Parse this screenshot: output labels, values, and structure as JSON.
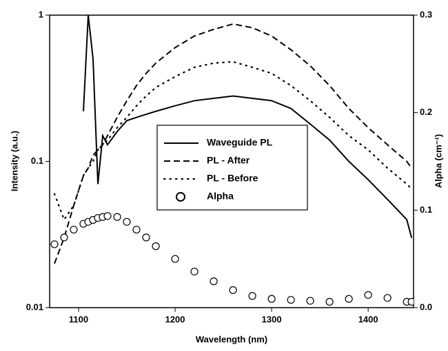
{
  "chart_data": {
    "type": "line",
    "xlabel": "Wavelength (nm)",
    "ylabel": "Intensity (a.u.)",
    "y2label": "Alpha (cm⁻¹)",
    "xlim": [
      1070,
      1447
    ],
    "xticks": [
      1100,
      1200,
      1300,
      1400
    ],
    "ylim": [
      0.01,
      1
    ],
    "yticks": [
      0.01,
      0.1,
      1
    ],
    "ylog": true,
    "y2lim": [
      0,
      0.3
    ],
    "y2ticks": [
      {
        "value": 0,
        "label": "0.0"
      },
      0.1,
      0.2,
      0.3
    ],
    "legend": "center",
    "x": [
      1075,
      1085,
      1095,
      1105,
      1110,
      1115,
      1120,
      1125,
      1130,
      1140,
      1150,
      1160,
      1170,
      1180,
      1200,
      1220,
      1240,
      1260,
      1280,
      1300,
      1320,
      1340,
      1360,
      1380,
      1400,
      1420,
      1440,
      1445
    ],
    "series": [
      {
        "name": "Waveguide PL",
        "color": "#000000",
        "style": "solid",
        "values": [
          null,
          null,
          null,
          0.22,
          1.0,
          0.5,
          0.07,
          0.15,
          0.13,
          0.16,
          0.19,
          0.2,
          0.21,
          0.22,
          0.24,
          0.26,
          0.27,
          0.28,
          0.27,
          0.26,
          0.23,
          0.18,
          0.14,
          0.1,
          0.075,
          0.055,
          0.04,
          0.03
        ]
      },
      {
        "name": "PL - After",
        "color": "#000000",
        "style": "dashed",
        "values": [
          0.02,
          0.03,
          0.05,
          0.08,
          0.09,
          0.11,
          0.12,
          0.13,
          0.15,
          0.2,
          0.26,
          0.33,
          0.4,
          0.47,
          0.6,
          0.72,
          0.8,
          0.87,
          0.82,
          0.72,
          0.58,
          0.45,
          0.33,
          0.23,
          0.17,
          0.13,
          0.1,
          0.09
        ]
      },
      {
        "name": "PL - Before",
        "color": "#000000",
        "style": "dotted",
        "values": [
          0.06,
          0.04,
          0.05,
          0.08,
          0.09,
          0.1,
          0.12,
          0.13,
          0.14,
          0.17,
          0.2,
          0.24,
          0.28,
          0.32,
          0.38,
          0.44,
          0.47,
          0.48,
          0.44,
          0.4,
          0.33,
          0.26,
          0.2,
          0.15,
          0.12,
          0.09,
          0.07,
          0.065
        ]
      },
      {
        "name": "Alpha",
        "color": "#000000",
        "style": "circles",
        "axis": "y2",
        "values": [
          0.065,
          0.072,
          0.08,
          0.086,
          0.088,
          0.09,
          0.092,
          0.093,
          0.094,
          0.093,
          0.088,
          0.08,
          0.072,
          0.063,
          0.05,
          0.037,
          0.027,
          0.018,
          0.012,
          0.009,
          0.008,
          0.007,
          0.006,
          0.009,
          0.013,
          0.01,
          0.006,
          0.006
        ]
      }
    ]
  }
}
